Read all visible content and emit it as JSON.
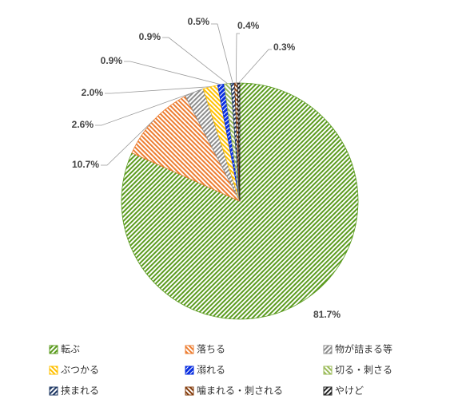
{
  "chart_data": {
    "type": "pie",
    "categories": [
      "転ぶ",
      "落ちる",
      "物が詰まる等",
      "ぶつかる",
      "溺れる",
      "切る・刺さる",
      "挟まれる",
      "噛まれる・刺される",
      "やけど"
    ],
    "values": [
      81.7,
      10.7,
      2.6,
      2.0,
      0.9,
      0.9,
      0.5,
      0.4,
      0.3
    ],
    "value_labels": [
      "81.7%",
      "10.7%",
      "2.6%",
      "2.0%",
      "0.9%",
      "0.9%",
      "0.5%",
      "0.4%",
      "0.3%"
    ],
    "colors": [
      "#5b9b1f",
      "#ed7d31",
      "#8c8c8c",
      "#ffc000",
      "#0a2fe0",
      "#9bbb59",
      "#1f3864",
      "#843c0c",
      "#222222"
    ]
  }
}
